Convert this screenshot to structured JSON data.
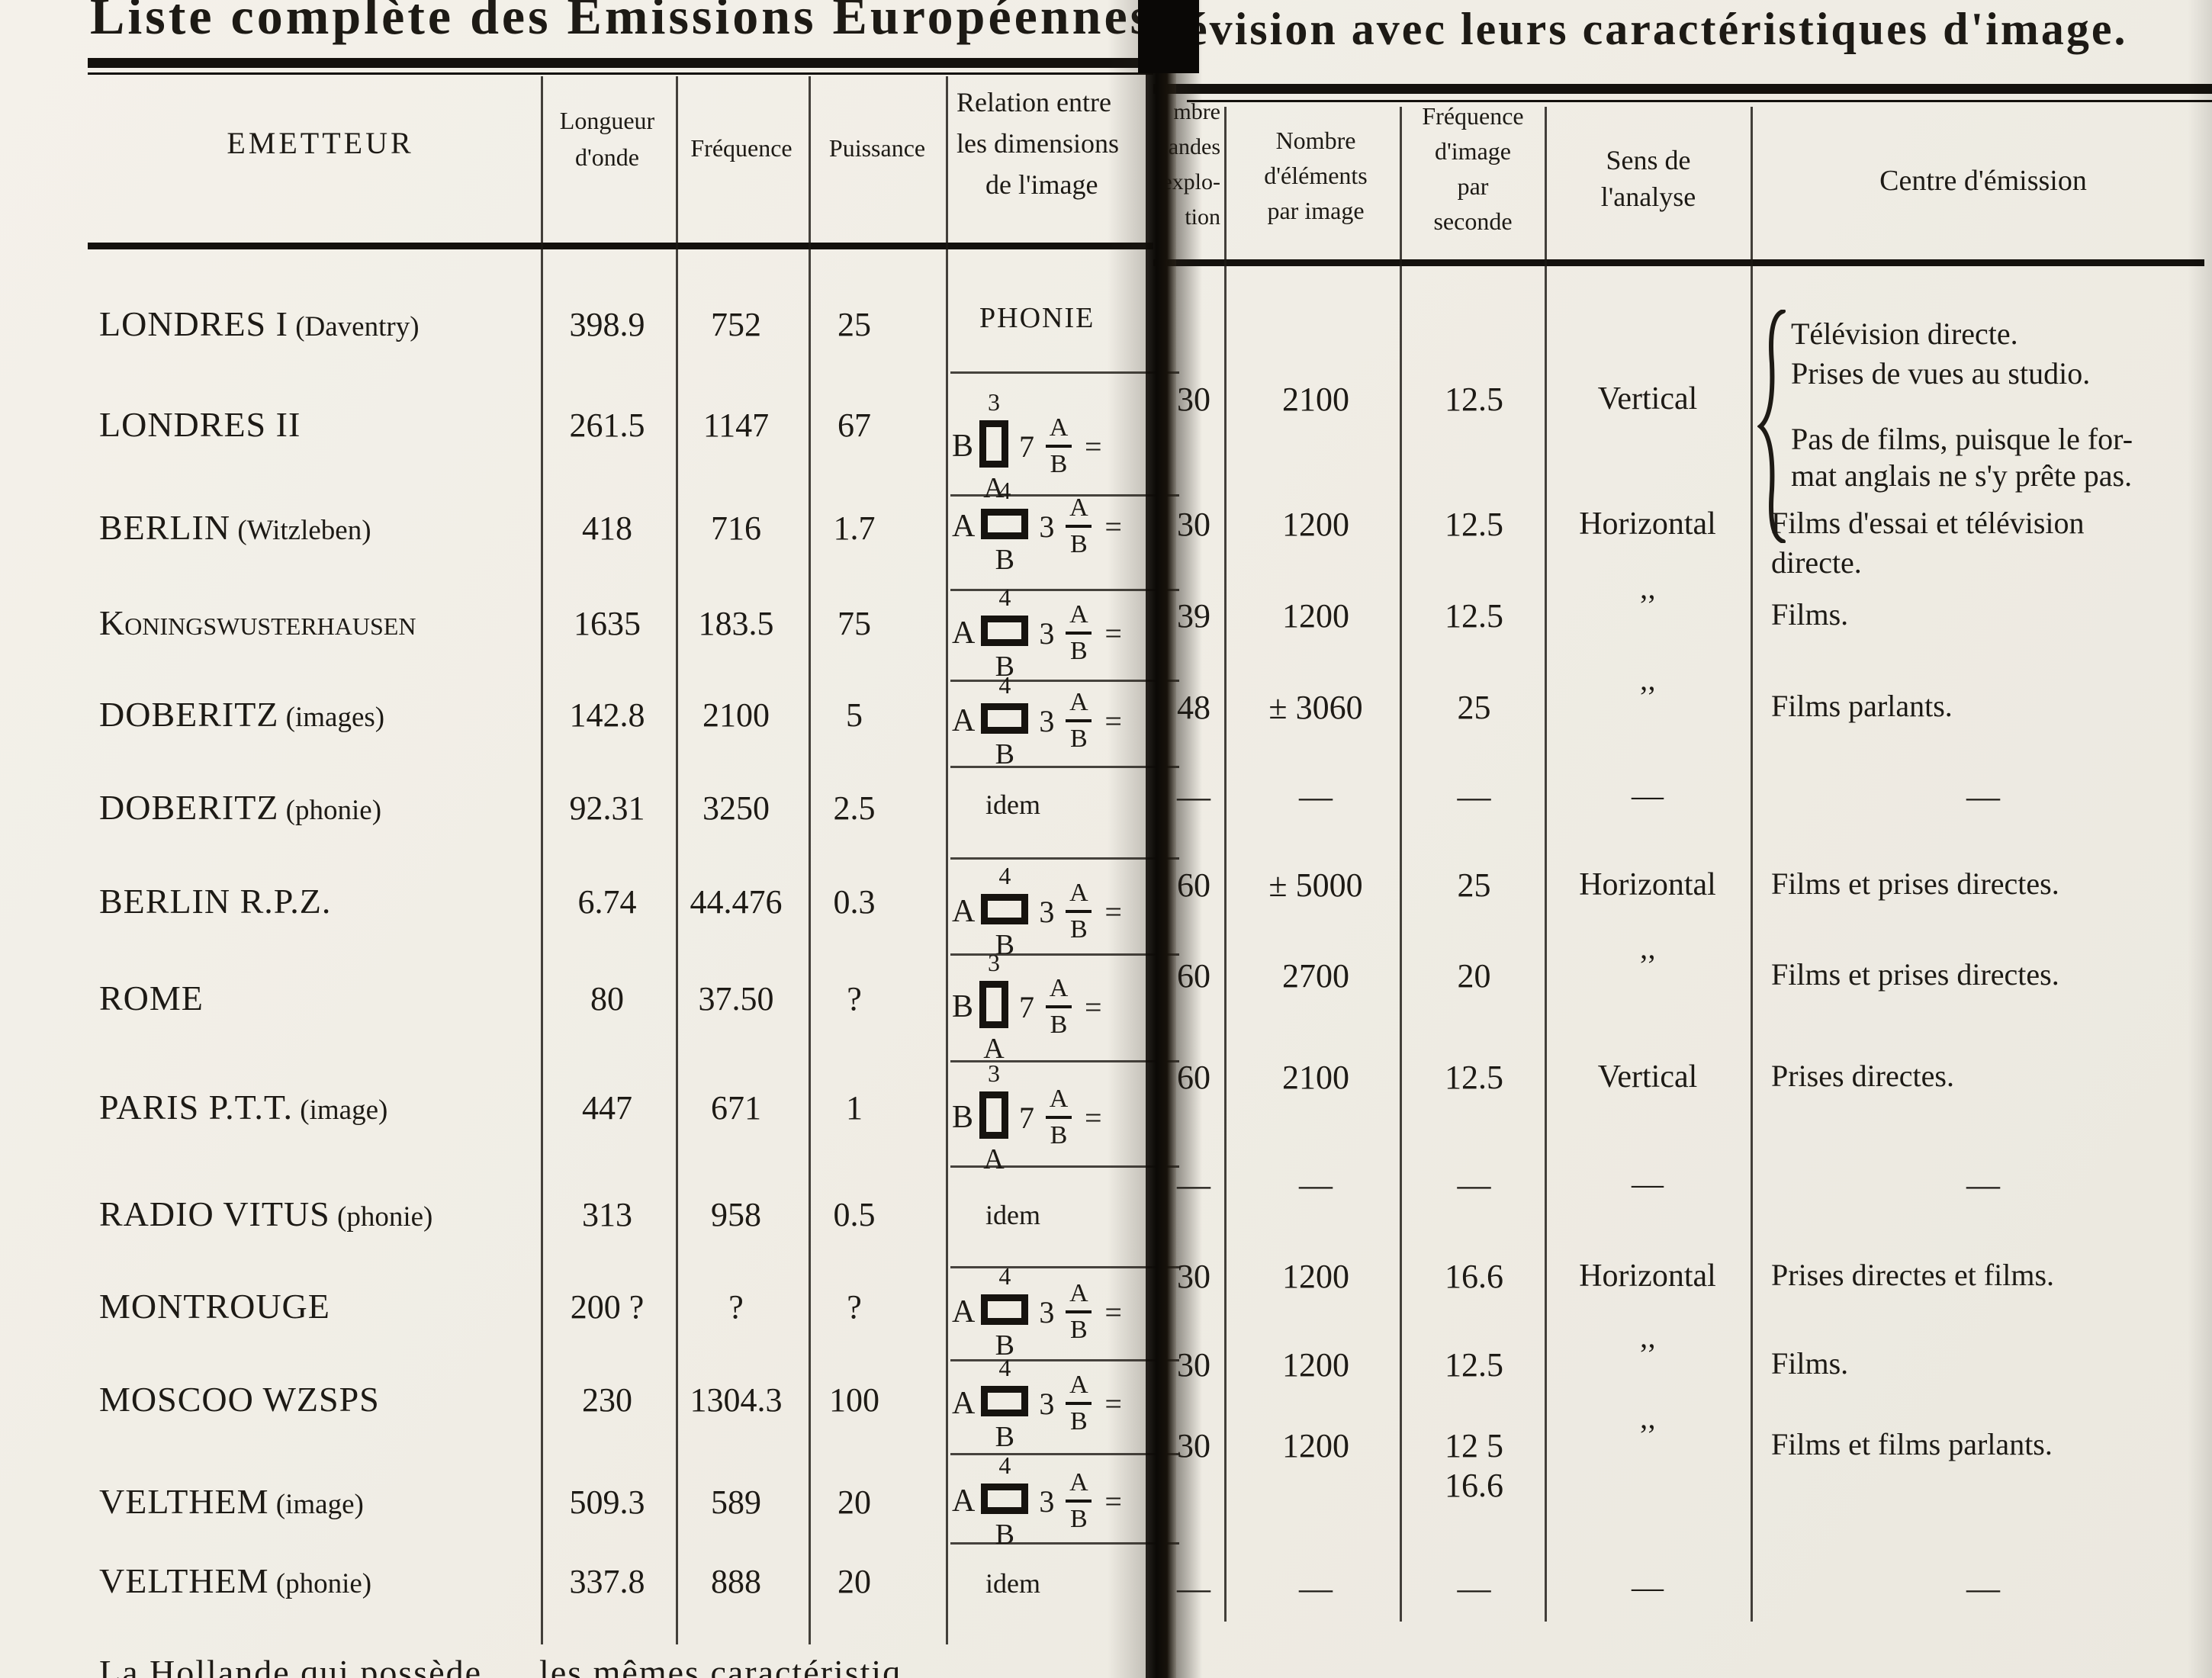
{
  "title": {
    "left": "Liste complète des Émissions Européennes d",
    "right": "évision avec leurs caractéristiques d'image."
  },
  "headers": {
    "emetteur": "EMETTEUR",
    "longueur": [
      "Longueur",
      "d'onde"
    ],
    "frequence": "Fréquence",
    "puissance": "Puissance",
    "relation": [
      "Relation entre",
      "les dimensions",
      "de l'image"
    ],
    "bandes_fragments": [
      "mbre",
      "bandes",
      "explo-",
      "tion"
    ],
    "elements": [
      "Nombre",
      "d'éléments",
      "par image"
    ],
    "freq_image": [
      "Fréquence",
      "d'image",
      "par",
      "seconde"
    ],
    "sens": [
      "Sens de",
      "l'analyse"
    ],
    "centre": "Centre d'émission"
  },
  "relation_frac": {
    "top": "A",
    "bottom": "B",
    "eq": "="
  },
  "brace_notes": {
    "group1": [
      "Télévision directe.",
      "Prises de vues au studio."
    ],
    "group2": [
      "Pas de films, puisque le for-",
      "mat anglais ne s'y prête pas."
    ]
  },
  "rows": [
    {
      "emetteur": "LONDRES I",
      "suffix": "(Daventry)",
      "longueur": "398.9",
      "frequence": "752",
      "puissance": "25",
      "relation": {
        "kind": "phonie",
        "label": "PHONIE"
      },
      "bandes": "",
      "elements": "",
      "freq_image": "",
      "sens": "",
      "centre": []
    },
    {
      "emetteur": "LONDRES II",
      "suffix": "",
      "longueur": "261.5",
      "frequence": "1147",
      "puissance": "67",
      "relation": {
        "kind": "diagram",
        "orient": "tall",
        "side": "B",
        "top": "3",
        "under": "A",
        "ratio": "7"
      },
      "bandes": "30",
      "elements": "2100",
      "freq_image": "12.5",
      "sens": "Vertical",
      "centre": []
    },
    {
      "emetteur": "BERLIN",
      "suffix": "(Witzleben)",
      "longueur": "418",
      "frequence": "716",
      "puissance": "1.7",
      "relation": {
        "kind": "diagram",
        "orient": "wide",
        "side": "A",
        "top": "4",
        "under": "B",
        "ratio": "3"
      },
      "bandes": "30",
      "elements": "1200",
      "freq_image": "12.5",
      "sens": "Horizontal",
      "centre": [
        "Films d'essai et télévision",
        "directe."
      ]
    },
    {
      "emetteur": "Koningswusterhausen",
      "smallcaps": true,
      "suffix": "",
      "longueur": "1635",
      "frequence": "183.5",
      "puissance": "75",
      "relation": {
        "kind": "diagram",
        "orient": "wide",
        "side": "A",
        "top": "4",
        "under": "B",
        "ratio": "3"
      },
      "bandes": "39",
      "elements": "1200",
      "freq_image": "12.5",
      "sens": "’’",
      "centre": [
        "Films."
      ]
    },
    {
      "emetteur": "DOBERITZ",
      "suffix": "(images)",
      "longueur": "142.8",
      "frequence": "2100",
      "puissance": "5",
      "relation": {
        "kind": "diagram",
        "orient": "wide",
        "side": "A",
        "top": "4",
        "under": "B",
        "ratio": "3"
      },
      "bandes": "48",
      "elements": "± 3060",
      "freq_image": "25",
      "sens": "’’",
      "centre": [
        "Films parlants."
      ]
    },
    {
      "emetteur": "DOBERITZ",
      "suffix": "(phonie)",
      "longueur": "92.31",
      "frequence": "3250",
      "puissance": "2.5",
      "relation": {
        "kind": "idem",
        "label": "idem"
      },
      "bandes": "—",
      "elements": "—",
      "freq_image": "—",
      "sens": "—",
      "centre": [
        "—"
      ]
    },
    {
      "emetteur": "BERLIN R.P.Z.",
      "suffix": "",
      "longueur": "6.74",
      "frequence": "44.476",
      "puissance": "0.3",
      "relation": {
        "kind": "diagram",
        "orient": "wide",
        "side": "A",
        "top": "4",
        "under": "B",
        "ratio": "3"
      },
      "bandes": "60",
      "elements": "± 5000",
      "freq_image": "25",
      "sens": "Horizontal",
      "centre": [
        "Films et prises directes."
      ]
    },
    {
      "emetteur": "ROME",
      "suffix": "",
      "longueur": "80",
      "frequence": "37.50",
      "puissance": "?",
      "relation": {
        "kind": "diagram",
        "orient": "tall",
        "side": "B",
        "top": "3",
        "under": "A",
        "ratio": "7"
      },
      "bandes": "60",
      "elements": "2700",
      "freq_image": "20",
      "sens": "’’",
      "centre": [
        "Films et prises directes."
      ]
    },
    {
      "emetteur": "PARIS P.T.T.",
      "suffix": "(image)",
      "longueur": "447",
      "frequence": "671",
      "puissance": "1",
      "relation": {
        "kind": "diagram",
        "orient": "tall",
        "side": "B",
        "top": "3",
        "under": "A",
        "ratio": "7"
      },
      "bandes": "60",
      "elements": "2100",
      "freq_image": "12.5",
      "sens": "Vertical",
      "centre": [
        "Prises directes."
      ]
    },
    {
      "emetteur": "RADIO VITUS",
      "suffix": "(phonie)",
      "longueur": "313",
      "frequence": "958",
      "puissance": "0.5",
      "relation": {
        "kind": "idem",
        "label": "idem"
      },
      "bandes": "—",
      "elements": "—",
      "freq_image": "—",
      "sens": "—",
      "centre": [
        "—"
      ]
    },
    {
      "emetteur": "MONTROUGE",
      "suffix": "",
      "longueur": "200 ?",
      "frequence": "?",
      "puissance": "?",
      "relation": {
        "kind": "diagram",
        "orient": "wide",
        "side": "A",
        "top": "4",
        "under": "B",
        "ratio": "3"
      },
      "bandes": "30",
      "elements": "1200",
      "freq_image": "16.6",
      "sens": "Horizontal",
      "centre": [
        "Prises directes et films."
      ]
    },
    {
      "emetteur": "MOSCOO WZSPS",
      "suffix": "",
      "longueur": "230",
      "frequence": "1304.3",
      "puissance": "100",
      "relation": {
        "kind": "diagram",
        "orient": "wide",
        "side": "A",
        "top": "4",
        "under": "B",
        "ratio": "3"
      },
      "bandes": "30",
      "elements": "1200",
      "freq_image": "12.5",
      "sens": "’’",
      "centre": [
        "Films."
      ]
    },
    {
      "emetteur": "VELTHEM",
      "suffix": "(image)",
      "longueur": "509.3",
      "frequence": "589",
      "puissance": "20",
      "relation": {
        "kind": "diagram",
        "orient": "wide",
        "side": "A",
        "top": "4",
        "under": "B",
        "ratio": "3"
      },
      "bandes": "30",
      "elements": "1200",
      "freq_image": [
        "12 5",
        "16.6"
      ],
      "sens": "’’",
      "centre": [
        "Films et films parlants."
      ]
    },
    {
      "emetteur": "VELTHEM",
      "suffix": "(phonie)",
      "longueur": "337.8",
      "frequence": "888",
      "puissance": "20",
      "relation": {
        "kind": "idem",
        "label": "idem"
      },
      "bandes": "—",
      "elements": "—",
      "freq_image": "—",
      "sens": "—",
      "centre": [
        "—"
      ]
    }
  ],
  "bottom_note": "La Hollande qui possède … les mêmes caractéristiq…",
  "ink_color": "#1d1a15",
  "paper_color": "#f1eee6"
}
